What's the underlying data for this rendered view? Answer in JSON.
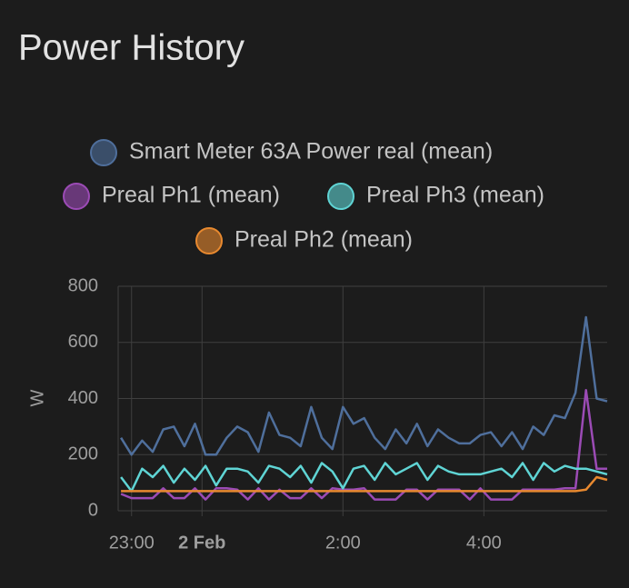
{
  "chart_data": {
    "type": "line",
    "title": "Power History",
    "y_label": "W",
    "x": [
      -1.15,
      -1.0,
      -0.85,
      -0.7,
      -0.55,
      -0.4,
      -0.25,
      -0.1,
      0.05,
      0.2,
      0.35,
      0.5,
      0.65,
      0.8,
      0.95,
      1.1,
      1.25,
      1.4,
      1.55,
      1.7,
      1.85,
      2.0,
      2.15,
      2.3,
      2.45,
      2.6,
      2.75,
      2.9,
      3.05,
      3.2,
      3.35,
      3.5,
      3.65,
      3.8,
      3.95,
      4.1,
      4.25,
      4.4,
      4.55,
      4.7,
      4.85,
      5.0,
      5.15,
      5.3,
      5.45,
      5.6,
      5.75
    ],
    "xlim": [
      -1.19,
      5.75
    ],
    "xticks": [
      {
        "value": -1,
        "label": "23:00"
      },
      {
        "value": 0,
        "label": "2 Feb"
      },
      {
        "value": 2,
        "label": "2:00"
      },
      {
        "value": 4,
        "label": "4:00"
      }
    ],
    "ylim": [
      0,
      800
    ],
    "yticks": [
      0,
      200,
      400,
      600,
      800
    ],
    "grid": true,
    "series": [
      {
        "name": "Smart Meter 63A Power real (mean)",
        "color": "#4f6f9c",
        "values": [
          260,
          200,
          250,
          210,
          290,
          300,
          230,
          310,
          200,
          200,
          260,
          300,
          280,
          210,
          350,
          270,
          260,
          230,
          370,
          260,
          220,
          370,
          310,
          330,
          260,
          220,
          290,
          240,
          310,
          230,
          290,
          260,
          240,
          240,
          270,
          280,
          230,
          280,
          220,
          300,
          270,
          340,
          330,
          420,
          690,
          400,
          390
        ]
      },
      {
        "name": "Preal Ph1 (mean)",
        "color": "#9b4bb5",
        "values": [
          60,
          45,
          45,
          45,
          80,
          45,
          45,
          80,
          40,
          80,
          80,
          75,
          40,
          80,
          40,
          75,
          45,
          45,
          80,
          45,
          80,
          75,
          75,
          80,
          40,
          40,
          40,
          75,
          75,
          40,
          75,
          75,
          75,
          40,
          80,
          40,
          40,
          40,
          75,
          75,
          75,
          75,
          80,
          80,
          430,
          150,
          150
        ]
      },
      {
        "name": "Preal Ph3 (mean)",
        "color": "#5fd4d4",
        "values": [
          120,
          70,
          150,
          120,
          160,
          100,
          150,
          110,
          160,
          90,
          150,
          150,
          140,
          100,
          160,
          150,
          120,
          160,
          100,
          170,
          140,
          80,
          150,
          160,
          110,
          170,
          130,
          150,
          170,
          110,
          160,
          140,
          130,
          130,
          130,
          140,
          150,
          120,
          170,
          110,
          170,
          140,
          160,
          150,
          150,
          140,
          130
        ]
      },
      {
        "name": "Preal Ph2 (mean)",
        "color": "#e8892f",
        "values": [
          70,
          70,
          70,
          70,
          70,
          70,
          70,
          70,
          70,
          70,
          70,
          70,
          70,
          70,
          70,
          70,
          70,
          70,
          70,
          70,
          70,
          70,
          70,
          70,
          70,
          70,
          70,
          70,
          70,
          70,
          70,
          70,
          70,
          70,
          70,
          70,
          70,
          70,
          70,
          70,
          70,
          70,
          70,
          70,
          75,
          120,
          110
        ]
      }
    ]
  }
}
